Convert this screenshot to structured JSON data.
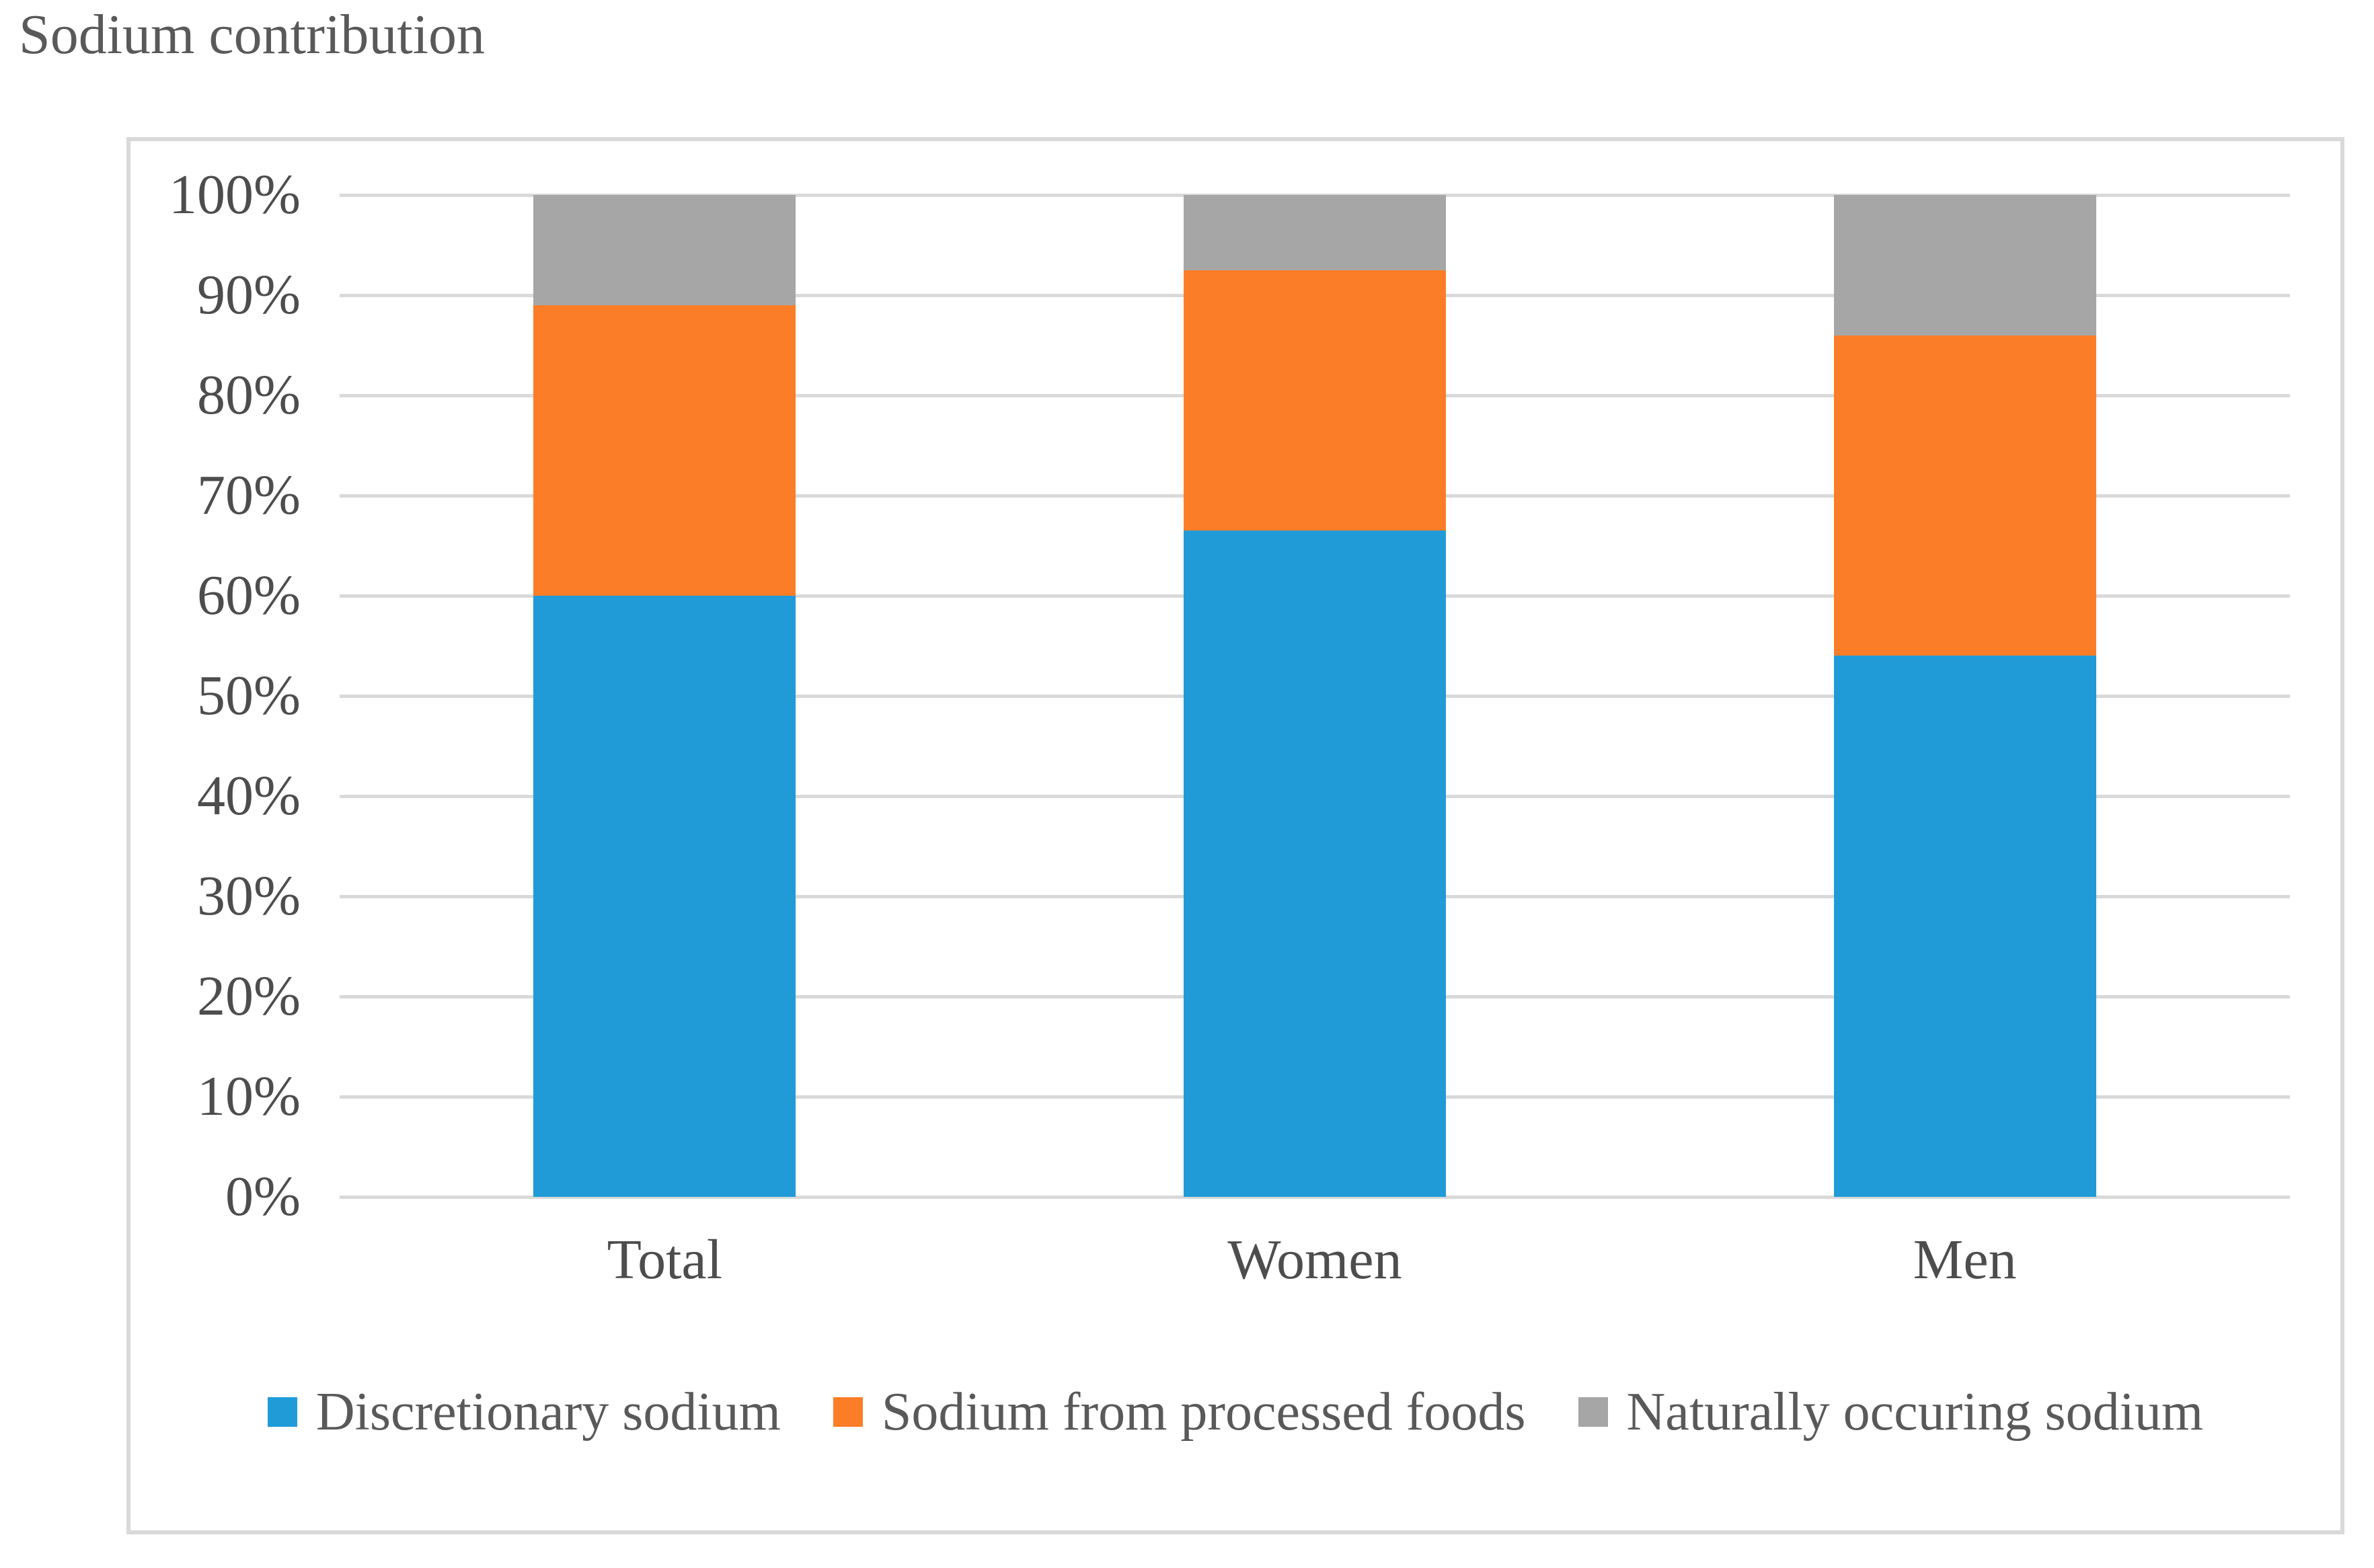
{
  "title": "Sodium contribution",
  "chart_data": {
    "type": "bar",
    "variant": "stacked-column-100pct",
    "title": "Sodium contribution",
    "categories": [
      "Total",
      "Women",
      "Men"
    ],
    "series": [
      {
        "name": "Discretionary sodium",
        "color": "#209BD8",
        "values": [
          60,
          66.5,
          54
        ]
      },
      {
        "name": "Sodium from processed foods",
        "color": "#FC7D27",
        "values": [
          29,
          26,
          32
        ]
      },
      {
        "name": "Naturally occuring sodium",
        "color": "#A6A6A6",
        "values": [
          11,
          7.5,
          14
        ]
      }
    ],
    "xlabel": "",
    "ylabel": "",
    "ylim": [
      0,
      100
    ],
    "y_ticks": [
      "0%",
      "10%",
      "20%",
      "30%",
      "40%",
      "50%",
      "60%",
      "70%",
      "80%",
      "90%",
      "100%"
    ],
    "grid": true,
    "legend_position": "bottom"
  },
  "colors": {
    "grid": "#D9D9D9",
    "chart_border": "#D9D9D9",
    "axis_text": "#4D4D4D",
    "title_text": "#595959",
    "legend_text": "#595959",
    "background": "#FFFFFF"
  }
}
